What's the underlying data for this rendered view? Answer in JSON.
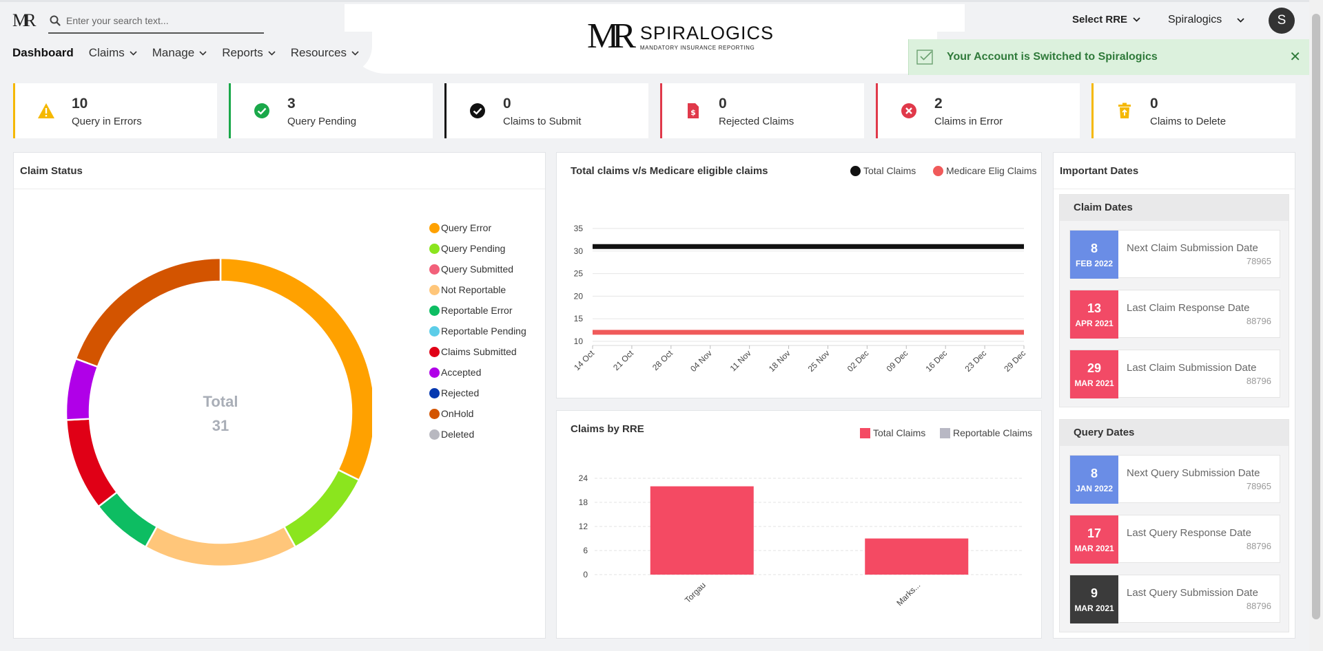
{
  "header": {
    "small_logo": "MR",
    "search_placeholder": "Enter your search text...",
    "brand_mark": "MR",
    "brand_name": "SPIRALOGICS",
    "brand_tagline": "MANDATORY INSURANCE REPORTING",
    "rre_select": "Select RRE",
    "account_select": "Spiralogics",
    "avatar_initial": "S",
    "nav": [
      {
        "label": "Dashboard",
        "active": true
      },
      {
        "label": "Claims"
      },
      {
        "label": "Manage"
      },
      {
        "label": "Reports"
      },
      {
        "label": "Resources"
      }
    ]
  },
  "toast": {
    "message": "Your Account is Switched to Spiralogics"
  },
  "stats": [
    {
      "count": "10",
      "label": "Query in Errors",
      "color": "#f5b800",
      "icon": "warning-icon"
    },
    {
      "count": "3",
      "label": "Query Pending",
      "color": "#1aa84a",
      "icon": "check-circle-icon"
    },
    {
      "count": "0",
      "label": "Claims to Submit",
      "color": "#111111",
      "icon": "check-circle-dark-icon"
    },
    {
      "count": "0",
      "label": "Rejected Claims",
      "color": "#e0394a",
      "icon": "invoice-icon"
    },
    {
      "count": "2",
      "label": "Claims in Error",
      "color": "#e0394a",
      "icon": "error-circle-icon"
    },
    {
      "count": "0",
      "label": "Claims to Delete",
      "color": "#f5b800",
      "icon": "trash-icon"
    }
  ],
  "claim_status": {
    "title": "Claim Status",
    "total_label": "Total",
    "total_value": "31"
  },
  "important_dates": {
    "title": "Important Dates",
    "groups": [
      {
        "title": "Claim Dates",
        "items": [
          {
            "day": "8",
            "month": "FEB 2022",
            "name": "Next Claim Submission Date",
            "number": "78965",
            "color": "#6a8de6"
          },
          {
            "day": "13",
            "month": "APR 2021",
            "name": "Last Claim Response Date",
            "number": "88796",
            "color": "#f24a66"
          },
          {
            "day": "29",
            "month": "MAR 2021",
            "name": "Last Claim Submission Date",
            "number": "88796",
            "color": "#f24a66"
          }
        ]
      },
      {
        "title": "Query Dates",
        "items": [
          {
            "day": "8",
            "month": "JAN 2022",
            "name": "Next Query Submission Date",
            "number": "78965",
            "color": "#6a8de6"
          },
          {
            "day": "17",
            "month": "MAR 2021",
            "name": "Last Query Response Date",
            "number": "88796",
            "color": "#f24a66"
          },
          {
            "day": "9",
            "month": "MAR 2021",
            "name": "Last Query Submission Date",
            "number": "88796",
            "color": "#3b3b3b"
          }
        ]
      }
    ]
  },
  "chart_data": [
    {
      "type": "pie",
      "title": "Claim Status",
      "donut": true,
      "categories": [
        "Query Error",
        "Query Pending",
        "Query Submitted",
        "Not Reportable",
        "Reportable Error",
        "Reportable Pending",
        "Claims Submitted",
        "Accepted",
        "Rejected",
        "OnHold",
        "Deleted"
      ],
      "values": [
        10,
        3,
        0,
        5,
        2,
        0,
        3,
        2,
        0,
        6,
        0
      ],
      "colors": [
        "#ffa100",
        "#8be51e",
        "#f2607a",
        "#ffc67a",
        "#0dbd62",
        "#5ccde8",
        "#e00016",
        "#b000e8",
        "#0538b0",
        "#d35400",
        "#b8b8c0"
      ],
      "legend": "right"
    },
    {
      "type": "line",
      "title": "Total claims v/s Medicare eligible claims",
      "x": [
        "14 Oct",
        "21 Oct",
        "28 Oct",
        "04 Nov",
        "11 Nov",
        "18 Nov",
        "25 Nov",
        "02 Dec",
        "09 Dec",
        "16 Dec",
        "23 Dec",
        "29 Dec"
      ],
      "series": [
        {
          "name": "Total Claims",
          "values": [
            31,
            31,
            31,
            31,
            31,
            31,
            31,
            31,
            31,
            31,
            31,
            31
          ],
          "color": "#111111"
        },
        {
          "name": "Medicare Elig Claims",
          "values": [
            12,
            12,
            12,
            12,
            12,
            12,
            12,
            12,
            12,
            12,
            12,
            12
          ],
          "color": "#f05a5a"
        }
      ],
      "yticks": [
        10,
        15,
        20,
        25,
        30,
        35
      ],
      "ylim": [
        10,
        35
      ],
      "grid": true,
      "legend": "top-right"
    },
    {
      "type": "bar",
      "title": "Claims by RRE",
      "categories": [
        "Torgau",
        "Marks..."
      ],
      "series": [
        {
          "name": "Total Claims",
          "values": [
            22,
            9
          ],
          "color": "#f44a63"
        },
        {
          "name": "Reportable Claims",
          "values": [
            0,
            0
          ],
          "color": "#b8b8c4"
        }
      ],
      "yticks": [
        0,
        6,
        12,
        18,
        24
      ],
      "ylim": [
        0,
        24
      ],
      "grid": true,
      "legend": "top-right"
    }
  ]
}
